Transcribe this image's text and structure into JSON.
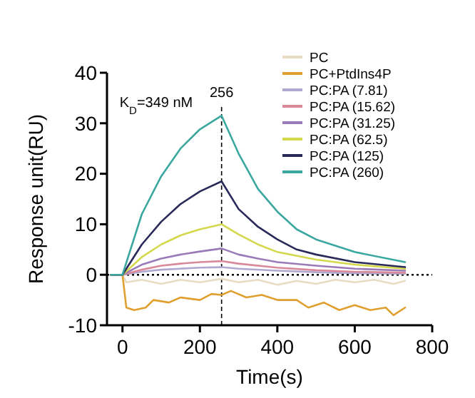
{
  "chart_data": {
    "type": "line",
    "xlabel": "Time(s)",
    "ylabel": "Response unit(RU)",
    "xlim": [
      -40,
      800
    ],
    "xticks": [
      0,
      200,
      400,
      600,
      800
    ],
    "ylim": [
      -10,
      40
    ],
    "yticks": [
      -10,
      0,
      10,
      20,
      30,
      40
    ],
    "legend": "top right",
    "grid": false,
    "line_style": "solid",
    "annotations": [
      "K$_{D}$=349 nM"
    ],
    "ref_lines": [
      {
        "axis": "y",
        "value": 0,
        "label": null,
        "line_style": "dotted",
        "color": "#000000"
      },
      {
        "axis": "x",
        "value": 256,
        "label": "256",
        "line_style": "dashed",
        "color": "#000000"
      }
    ],
    "series": [
      {
        "name": "PC",
        "color": "#e8dcc4",
        "x": [
          -30,
          0,
          10,
          50,
          100,
          150,
          200,
          256,
          300,
          350,
          400,
          450,
          500,
          550,
          600,
          650,
          700,
          730
        ],
        "values": [
          0,
          0,
          -1.5,
          -1,
          -1.8,
          -1,
          -1.5,
          -0.8,
          -1.5,
          -1,
          -2,
          -1.2,
          -1.8,
          -1,
          -1.5,
          -1,
          -1.8,
          -1.2
        ]
      },
      {
        "name": "PC+PtdIns4P",
        "color": "#e0a030",
        "x": [
          -30,
          0,
          10,
          30,
          60,
          80,
          120,
          150,
          200,
          230,
          256,
          280,
          320,
          360,
          400,
          450,
          480,
          520,
          560,
          600,
          640,
          680,
          700,
          730
        ],
        "values": [
          0,
          0,
          -6.5,
          -7,
          -6.5,
          -5,
          -5.5,
          -4.5,
          -5,
          -3.8,
          -4,
          -3.2,
          -4.5,
          -4,
          -5,
          -5,
          -6.5,
          -5.5,
          -7,
          -6,
          -7,
          -6.5,
          -8,
          -6.5
        ]
      },
      {
        "name": "PC:PA (7.81)",
        "color": "#b0a8d0",
        "x": [
          -30,
          0,
          50,
          100,
          150,
          200,
          256,
          300,
          400,
          500,
          600,
          730
        ],
        "values": [
          0,
          0,
          0.6,
          1,
          1.2,
          1.4,
          1.5,
          1.2,
          0.8,
          0.5,
          0.3,
          0.2
        ]
      },
      {
        "name": "PC:PA (15.62)",
        "color": "#d88a9a",
        "x": [
          -30,
          0,
          50,
          100,
          150,
          200,
          256,
          300,
          400,
          500,
          600,
          730
        ],
        "values": [
          0,
          0,
          1,
          1.8,
          2.2,
          2.5,
          2.7,
          2.2,
          1.4,
          0.9,
          0.6,
          0.4
        ]
      },
      {
        "name": "PC:PA (31.25)",
        "color": "#9a7ab8",
        "x": [
          -30,
          0,
          50,
          100,
          150,
          200,
          256,
          300,
          350,
          400,
          500,
          600,
          730
        ],
        "values": [
          0,
          0,
          2,
          3.2,
          4,
          4.6,
          5.2,
          4,
          3.2,
          2.5,
          1.8,
          1.2,
          0.8
        ]
      },
      {
        "name": "PC:PA (62.5)",
        "color": "#d4d84c",
        "x": [
          -30,
          0,
          50,
          100,
          150,
          200,
          256,
          300,
          350,
          400,
          500,
          600,
          730
        ],
        "values": [
          0,
          0,
          3.5,
          6,
          7.8,
          9,
          10,
          8,
          6,
          4.5,
          3,
          2,
          1.2
        ]
      },
      {
        "name": "PC:PA (125)",
        "color": "#2a2a5a",
        "x": [
          -30,
          0,
          50,
          100,
          150,
          200,
          256,
          300,
          350,
          400,
          450,
          500,
          600,
          730
        ],
        "values": [
          0,
          0,
          6,
          10.5,
          14,
          16.5,
          18.5,
          13,
          9.5,
          7,
          5,
          4,
          2.5,
          1.5
        ]
      },
      {
        "name": "PC:PA (260)",
        "color": "#3aa8a0",
        "x": [
          -30,
          0,
          50,
          100,
          150,
          200,
          256,
          300,
          350,
          400,
          450,
          500,
          600,
          730
        ],
        "values": [
          0,
          0,
          12,
          19.5,
          25,
          28.8,
          31.5,
          24,
          17,
          12.5,
          9,
          7,
          4.5,
          2.5
        ]
      }
    ]
  }
}
